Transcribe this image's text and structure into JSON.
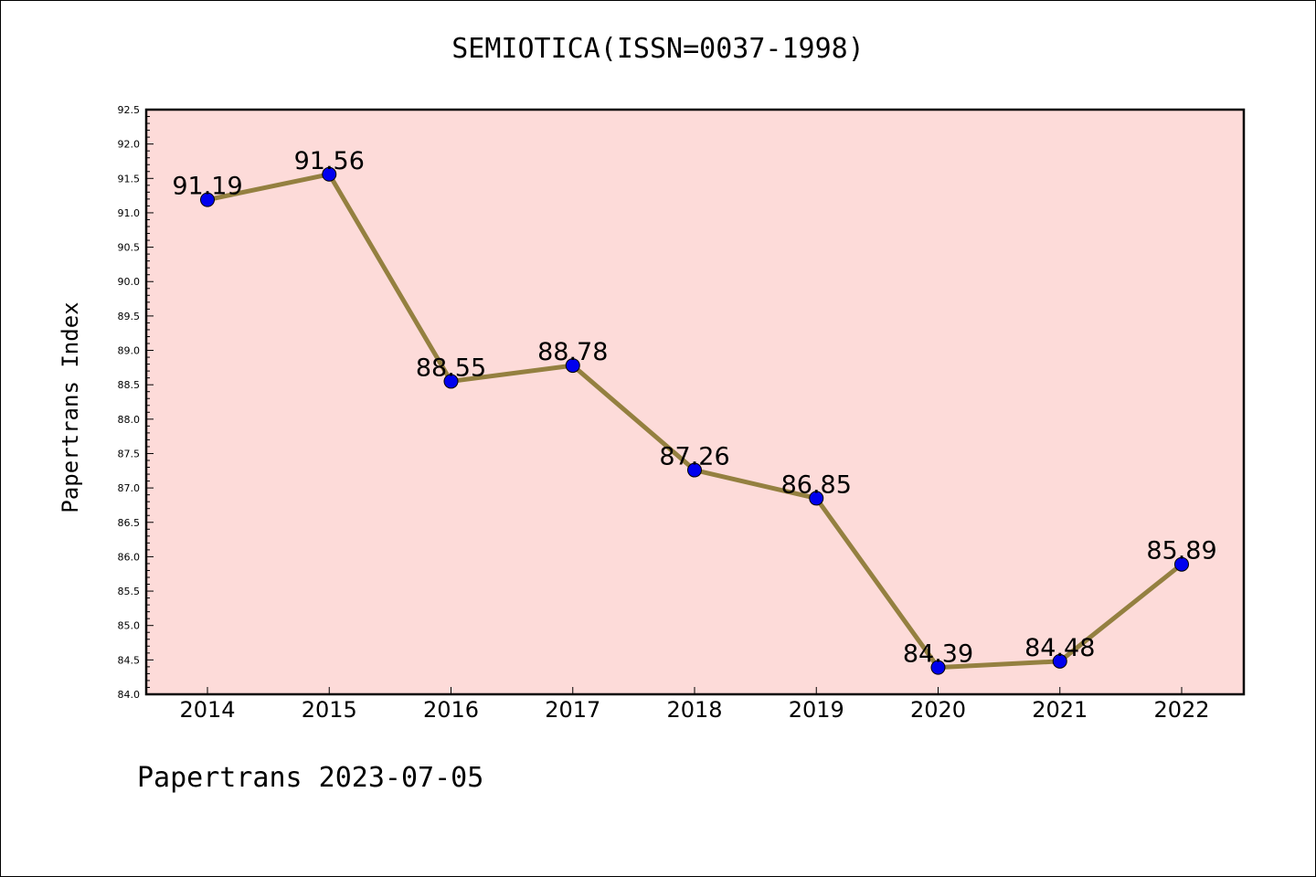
{
  "chart_data": {
    "type": "line",
    "title": "SEMIOTICA(ISSN=0037-1998)",
    "ylabel": "Papertrans Index",
    "xlabel": "",
    "x": [
      "2014",
      "2015",
      "2016",
      "2017",
      "2018",
      "2019",
      "2020",
      "2021",
      "2022"
    ],
    "series": [
      {
        "values": [
          91.19,
          91.56,
          88.55,
          88.78,
          87.26,
          86.85,
          84.39,
          84.48,
          85.89
        ],
        "labels": [
          "91.19",
          "91.56",
          "88.55",
          "88.78",
          "87.26",
          "86.85",
          "84.39",
          "84.48",
          "85.89"
        ]
      }
    ],
    "ylim": [
      84.0,
      92.5
    ],
    "yticks": [
      "84.0",
      "84.5",
      "85.0",
      "85.5",
      "86.0",
      "86.5",
      "87.0",
      "87.5",
      "88.0",
      "88.5",
      "89.0",
      "89.5",
      "90.0",
      "90.5",
      "91.0",
      "91.5",
      "92.0",
      "92.5"
    ],
    "grid": false,
    "line_color": "#948040",
    "marker_color": "#0000ee",
    "background_color": "#fddbd9"
  },
  "footer": "Papertrans 2023-07-05"
}
